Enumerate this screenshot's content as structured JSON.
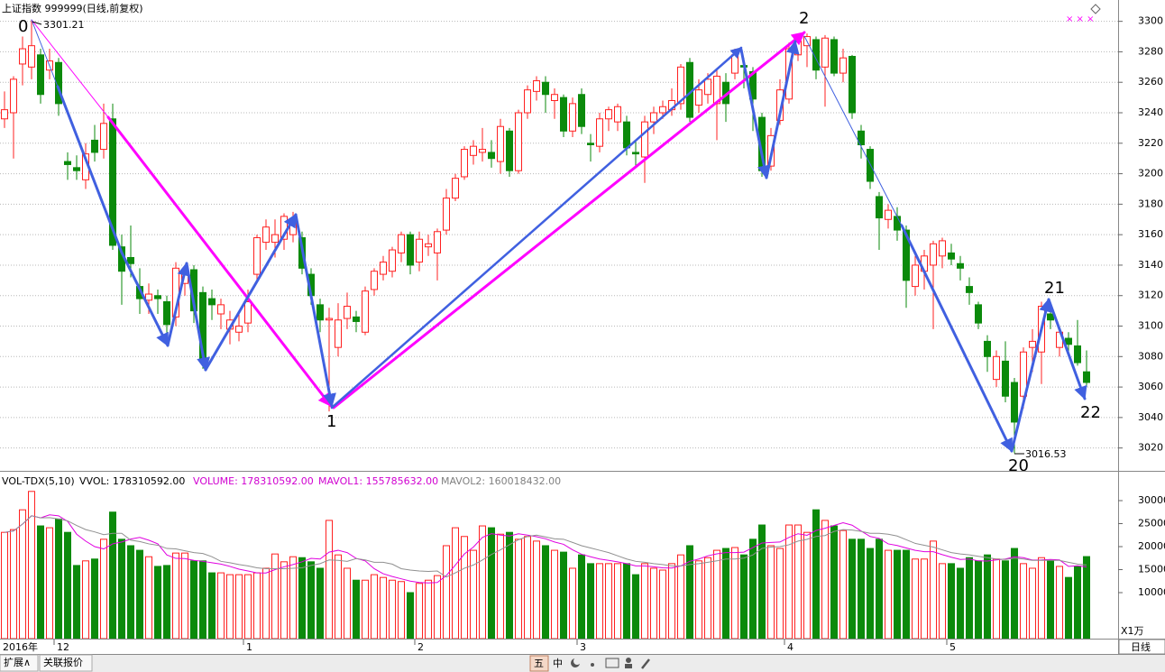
{
  "title": "上证指数 999999(日线,前复权)",
  "chart_data": [
    {
      "type": "candlestick",
      "colors": {
        "up": "#ff2020",
        "down": "#0b8a0b"
      },
      "grid": true,
      "ylim": [
        3005,
        3314
      ],
      "yticks": [
        3020,
        3040,
        3060,
        3080,
        3100,
        3120,
        3140,
        3160,
        3180,
        3200,
        3220,
        3240,
        3260,
        3280,
        3300
      ],
      "categories": [
        "2016年",
        null,
        null,
        null,
        null,
        null,
        "12",
        null,
        null,
        null,
        null,
        null,
        null,
        null,
        null,
        null,
        null,
        null,
        null,
        null,
        null,
        null,
        null,
        null,
        null,
        null,
        null,
        "1",
        null,
        null,
        null,
        null,
        null,
        null,
        null,
        null,
        null,
        null,
        null,
        null,
        null,
        null,
        null,
        null,
        null,
        null,
        "2",
        null,
        null,
        null,
        null,
        null,
        null,
        null,
        null,
        null,
        null,
        null,
        null,
        null,
        null,
        null,
        null,
        null,
        "3",
        null,
        null,
        null,
        null,
        null,
        null,
        null,
        null,
        null,
        null,
        null,
        null,
        null,
        null,
        null,
        null,
        null,
        null,
        null,
        null,
        null,
        null,
        "4",
        null,
        null,
        null,
        null,
        null,
        null,
        null,
        null,
        null,
        null,
        null,
        null,
        null,
        null,
        null,
        null,
        null,
        "5",
        null,
        null,
        null,
        null,
        null,
        null,
        null,
        null,
        null,
        null,
        null,
        null,
        null,
        null,
        null
      ],
      "open": [
        3236,
        3240,
        3272,
        3270,
        3278,
        3268,
        3273,
        3208,
        3204,
        3196,
        3222,
        3216,
        3236,
        3152,
        3145,
        3126,
        3117,
        3120,
        3116,
        3106,
        3128,
        3137,
        3122,
        3118,
        3108,
        3098,
        3096,
        3102,
        3134,
        3155,
        3155,
        3157,
        3160,
        3158,
        3134,
        3114,
        3104,
        3086,
        3105,
        3106,
        3096,
        3124,
        3134,
        3136,
        3148,
        3160,
        3142,
        3152,
        3148,
        3163,
        3184,
        3198,
        3212,
        3214,
        3214,
        3208,
        3228,
        3202,
        3240,
        3254,
        3260,
        3248,
        3250,
        3228,
        3252,
        3220,
        3218,
        3236,
        3234,
        3234,
        3214,
        3211,
        3234,
        3240,
        3242,
        3246,
        3273,
        3245,
        3252,
        3246,
        3260,
        3266,
        3271,
        3267,
        3237,
        3205,
        3235,
        3249,
        3278,
        3284,
        3288,
        3270,
        3288,
        3266,
        3277,
        3228,
        3216,
        3185,
        3170,
        3172,
        3163,
        3126,
        3136,
        3140,
        3146,
        3148,
        3141,
        3126,
        3114,
        3090,
        3065,
        3077,
        3063,
        3054,
        3086,
        3083,
        3108,
        3086,
        3092,
        3087,
        3070
      ],
      "high": [
        3254,
        3264,
        3290,
        3301.21,
        3282,
        3282,
        3276,
        3214,
        3212,
        3220,
        3232,
        3246,
        3246,
        3160,
        3166,
        3138,
        3128,
        3124,
        3120,
        3142,
        3140,
        3140,
        3126,
        3124,
        3118,
        3110,
        3108,
        3124,
        3160,
        3170,
        3170,
        3174,
        3175,
        3162,
        3138,
        3118,
        3112,
        3115,
        3122,
        3110,
        3126,
        3138,
        3146,
        3152,
        3162,
        3162,
        3162,
        3160,
        3164,
        3190,
        3200,
        3218,
        3222,
        3230,
        3222,
        3236,
        3230,
        3242,
        3258,
        3264,
        3264,
        3256,
        3252,
        3250,
        3256,
        3226,
        3240,
        3244,
        3246,
        3238,
        3222,
        3238,
        3244,
        3248,
        3256,
        3272,
        3276,
        3262,
        3266,
        3268,
        3266,
        3282,
        3276,
        3270,
        3240,
        3230,
        3262,
        3286,
        3290,
        3292,
        3290,
        3291,
        3290,
        3282,
        3278,
        3232,
        3218,
        3188,
        3180,
        3178,
        3166,
        3146,
        3150,
        3156,
        3158,
        3154,
        3146,
        3132,
        3116,
        3094,
        3084,
        3090,
        3066,
        3086,
        3098,
        3116,
        3112,
        3100,
        3096,
        3104,
        3084
      ],
      "low": [
        3230,
        3210,
        3258,
        3262,
        3246,
        3262,
        3238,
        3196,
        3196,
        3190,
        3208,
        3210,
        3150,
        3114,
        3132,
        3108,
        3108,
        3108,
        3088,
        3100,
        3120,
        3102,
        3072,
        3104,
        3098,
        3088,
        3090,
        3096,
        3130,
        3150,
        3145,
        3150,
        3155,
        3134,
        3114,
        3096,
        3044,
        3080,
        3098,
        3096,
        3094,
        3120,
        3130,
        3132,
        3142,
        3134,
        3136,
        3146,
        3130,
        3160,
        3182,
        3196,
        3206,
        3208,
        3204,
        3200,
        3198,
        3200,
        3236,
        3248,
        3240,
        3236,
        3224,
        3224,
        3226,
        3208,
        3214,
        3228,
        3228,
        3212,
        3204,
        3194,
        3226,
        3236,
        3238,
        3242,
        3234,
        3240,
        3246,
        3222,
        3234,
        3262,
        3256,
        3228,
        3198,
        3202,
        3232,
        3246,
        3274,
        3270,
        3262,
        3244,
        3264,
        3260,
        3236,
        3210,
        3190,
        3150,
        3164,
        3156,
        3112,
        3120,
        3124,
        3098,
        3138,
        3140,
        3130,
        3114,
        3098,
        3070,
        3060,
        3050,
        3016.53,
        3046,
        3070,
        3062,
        3098,
        3080,
        3080,
        3074,
        3060
      ],
      "close": [
        3242,
        3262,
        3282,
        3284,
        3252,
        3274,
        3246,
        3206,
        3202,
        3213,
        3214,
        3233,
        3153,
        3136,
        3141,
        3118,
        3121,
        3118,
        3101,
        3138,
        3136,
        3110,
        3077,
        3114,
        3114,
        3104,
        3100,
        3116,
        3158,
        3165,
        3160,
        3172,
        3170,
        3138,
        3120,
        3104,
        3105,
        3104,
        3113,
        3103,
        3123,
        3136,
        3142,
        3150,
        3160,
        3140,
        3157,
        3154,
        3162,
        3184,
        3197,
        3216,
        3218,
        3216,
        3210,
        3231,
        3202,
        3240,
        3255,
        3261,
        3252,
        3252,
        3228,
        3246,
        3231,
        3219,
        3236,
        3242,
        3244,
        3217,
        3213,
        3234,
        3240,
        3244,
        3248,
        3270,
        3237,
        3255,
        3262,
        3264,
        3246,
        3278,
        3270,
        3249,
        3202,
        3225,
        3255,
        3282,
        3287,
        3290,
        3268,
        3289,
        3266,
        3276,
        3240,
        3219,
        3195,
        3171,
        3176,
        3163,
        3130,
        3140,
        3146,
        3154,
        3156,
        3144,
        3138,
        3122,
        3102,
        3080,
        3080,
        3054,
        3037,
        3083,
        3090,
        3113,
        3104,
        3096,
        3088,
        3076,
        3063
      ],
      "annotations": [
        {
          "text": "0"
        },
        {
          "text": 3301.21
        },
        {
          "text": "1"
        },
        {
          "text": "2"
        },
        {
          "text": "20"
        },
        {
          "text": 3016.53
        },
        {
          "text": "21"
        },
        {
          "text": "22"
        }
      ]
    },
    {
      "type": "bar",
      "indicator": "VOL-TDX(5,10)",
      "readouts": [
        {
          "text": "VVOL: 178310592.00",
          "color": "#000000"
        },
        {
          "text": "VOLUME: 178310592.00",
          "color": "#d000d0"
        },
        {
          "text": "MAVOL1: 155785632.00",
          "color": "#d000d0"
        },
        {
          "text": "MAVOL2: 160018432.00",
          "color": "#808080"
        }
      ],
      "unit": "X1万",
      "ylim": [
        0,
        35880
      ],
      "yticks": [
        10000,
        15000,
        20000,
        25000,
        30000
      ],
      "values": [
        23100,
        23700,
        28000,
        32000,
        24500,
        24100,
        26000,
        23100,
        15900,
        16900,
        17300,
        21600,
        27500,
        21600,
        20200,
        19200,
        17800,
        15700,
        15900,
        18600,
        18600,
        16900,
        16900,
        14300,
        14300,
        13900,
        13900,
        13900,
        14300,
        15300,
        18400,
        16700,
        17800,
        17600,
        16700,
        15300,
        25700,
        18200,
        15300,
        12700,
        12700,
        13900,
        13300,
        12700,
        12400,
        10000,
        12000,
        12700,
        13700,
        20200,
        24100,
        22200,
        19200,
        24500,
        24100,
        22700,
        23100,
        21600,
        22200,
        21200,
        20200,
        19200,
        18800,
        15300,
        18200,
        16300,
        16300,
        16300,
        16300,
        16300,
        13900,
        16300,
        15300,
        14900,
        16300,
        18200,
        20200,
        16900,
        17600,
        19200,
        19600,
        19800,
        18200,
        21600,
        24700,
        20200,
        19600,
        24700,
        24700,
        23100,
        28000,
        25700,
        24500,
        23500,
        21600,
        21600,
        19600,
        21600,
        19200,
        19200,
        19200,
        17300,
        17300,
        21200,
        16300,
        16300,
        15300,
        17600,
        16900,
        18200,
        17300,
        16900,
        19600,
        16300,
        15300,
        17600,
        16900,
        15700,
        13300,
        15700,
        17831
      ],
      "lines": [
        {
          "color": "#e000e0",
          "values": [
            23100,
            23400,
            24900,
            26700,
            26260,
            26900,
            26700,
            25500,
            22700,
            21200,
            20000,
            19500,
            20600,
            21000,
            21640,
            22000,
            21400,
            20600,
            18200,
            17440,
            17400,
            17000,
            16800,
            16500,
            16200,
            15700,
            15100,
            14700,
            14300,
            14260,
            15000,
            15600,
            16100,
            16700,
            17440,
            17300,
            18800,
            19200,
            18700,
            17440,
            16900,
            15200,
            14100,
            13500,
            13000,
            12500,
            12200,
            12100,
            12200,
            13720,
            16000,
            18400,
            19900,
            22000,
            22820,
            22500,
            22300,
            22800,
            22500,
            22160,
            21700,
            21000,
            20500,
            19300,
            18340,
            17800,
            17300,
            17000,
            16700,
            16300,
            15800,
            15800,
            15600,
            15400,
            15340,
            15800,
            16800,
            17300,
            18000,
            18420,
            18700,
            18700,
            18800,
            19800,
            20780,
            20900,
            21000,
            22000,
            22800,
            22460,
            23500,
            24000,
            24600,
            25200,
            24660,
            23400,
            22200,
            21800,
            20600,
            20240,
            19700,
            19200,
            18900,
            18900,
            18260,
            17700,
            17200,
            17300,
            16900,
            16860,
            17100,
            17300,
            17800,
            17600,
            17080,
            17100,
            17200,
            17100,
            15700,
            15840,
            15579
          ]
        },
        {
          "color": "#909090",
          "values": [
            23100,
            23400,
            24900,
            26700,
            26260,
            26300,
            26000,
            25600,
            24600,
            23700,
            23200,
            22600,
            22900,
            22900,
            21400,
            21100,
            20600,
            20300,
            19600,
            19500,
            19100,
            18700,
            18500,
            17800,
            16800,
            16500,
            16100,
            15800,
            15400,
            15200,
            15200,
            15200,
            15300,
            15400,
            15900,
            16300,
            17100,
            17000,
            16800,
            17400,
            17100,
            16600,
            16600,
            16200,
            15200,
            14900,
            14700,
            14600,
            14700,
            13400,
            14300,
            15300,
            16000,
            17100,
            18300,
            19300,
            20400,
            21500,
            22200,
            22500,
            22100,
            21700,
            21600,
            20900,
            20200,
            19700,
            19200,
            18700,
            18000,
            17300,
            16800,
            16600,
            16300,
            16100,
            15800,
            15800,
            16100,
            16300,
            16600,
            16900,
            17300,
            17300,
            17500,
            18200,
            19600,
            19900,
            20000,
            20400,
            21200,
            21600,
            22200,
            22400,
            23300,
            23700,
            23600,
            23300,
            22900,
            22900,
            22700,
            22300,
            21500,
            20700,
            20300,
            19900,
            19300,
            18700,
            18400,
            18200,
            17900,
            17600,
            17300,
            17200,
            17500,
            17300,
            17000,
            17000,
            17000,
            17000,
            16600,
            16200,
            16002
          ]
        }
      ]
    }
  ],
  "period": "日线",
  "tabs": [
    "扩展∧",
    "关联报价"
  ],
  "toolbar": [
    "五",
    "中"
  ]
}
